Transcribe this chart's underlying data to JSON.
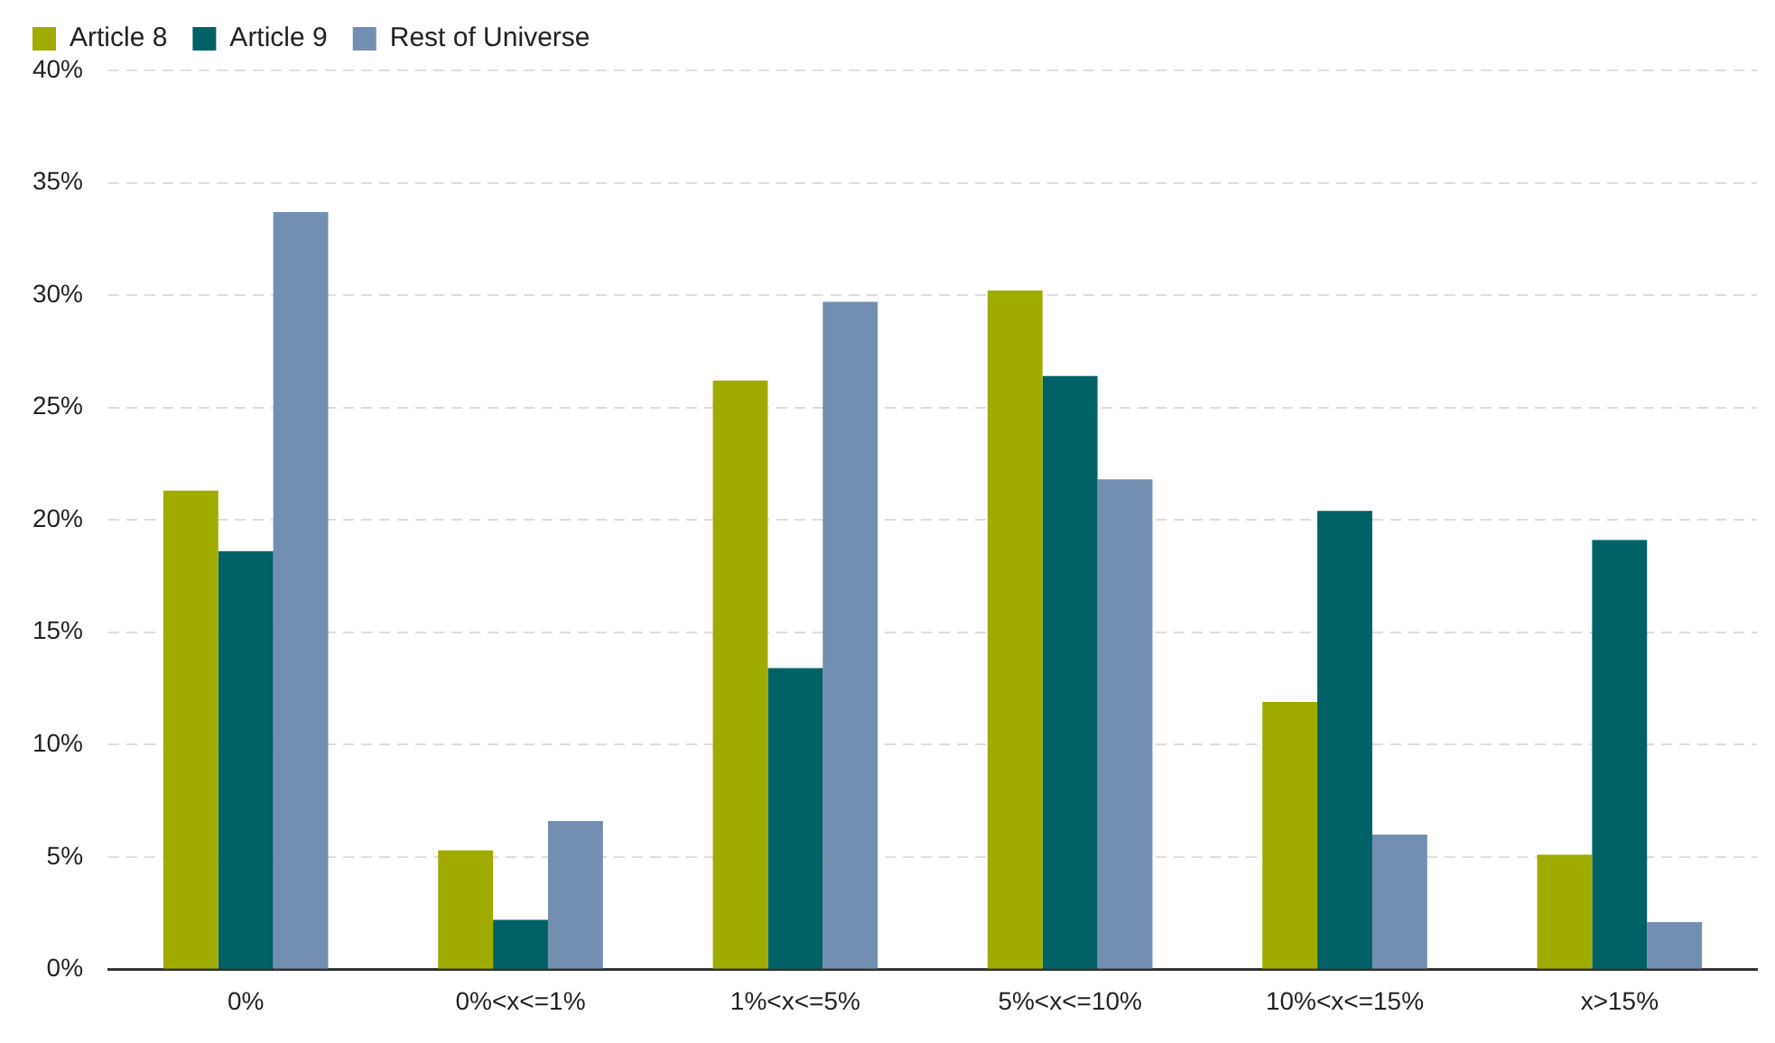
{
  "chart_data": {
    "type": "bar",
    "categories": [
      "0%",
      "0%<x<=1%",
      "1%<x<=5%",
      "5%<x<=10%",
      "10%<x<=15%",
      "x>15%"
    ],
    "series": [
      {
        "name": "Article 8",
        "color": "#a0ab00",
        "values": [
          21.3,
          5.3,
          26.2,
          30.2,
          11.9,
          5.1
        ]
      },
      {
        "name": "Article 9",
        "color": "#006166",
        "values": [
          18.6,
          2.2,
          13.4,
          26.4,
          20.4,
          19.1
        ]
      },
      {
        "name": "Rest of Universe",
        "color": "#728fb2",
        "values": [
          33.7,
          6.6,
          29.7,
          21.8,
          6.0,
          2.1
        ]
      }
    ],
    "ylim": [
      0,
      40
    ],
    "yticks": [
      {
        "value": 0,
        "label": "0%"
      },
      {
        "value": 5,
        "label": "5%"
      },
      {
        "value": 10,
        "label": "10%"
      },
      {
        "value": 15,
        "label": "15%"
      },
      {
        "value": 20,
        "label": "20%"
      },
      {
        "value": 25,
        "label": "25%"
      },
      {
        "value": 30,
        "label": "30%"
      },
      {
        "value": 35,
        "label": "35%"
      },
      {
        "value": 40,
        "label": "40%"
      }
    ],
    "grid": "y",
    "legend": "top left"
  }
}
